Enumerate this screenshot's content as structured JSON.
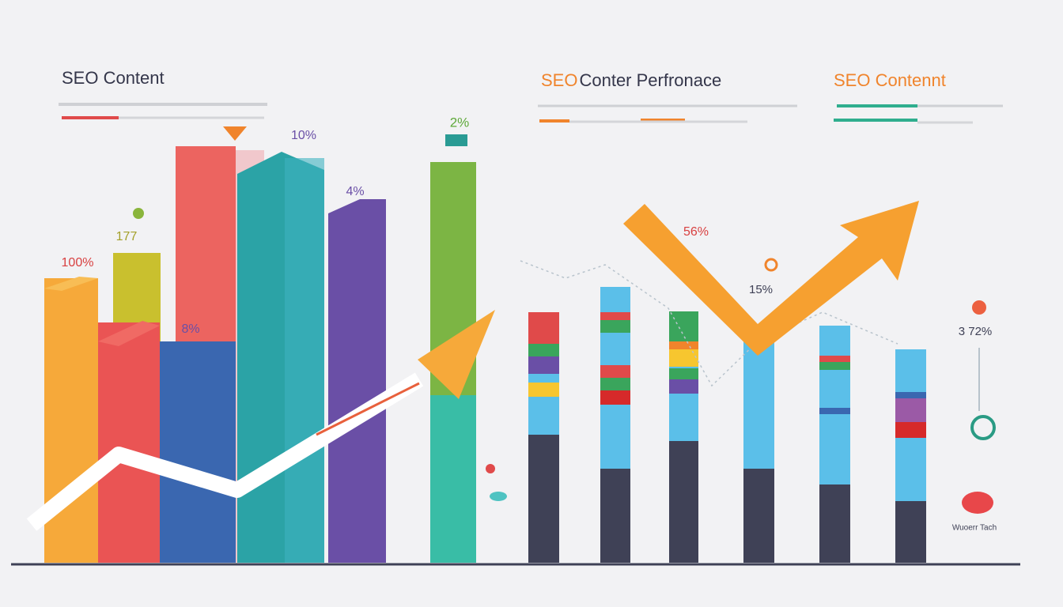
{
  "header": {
    "left_title": "SEO Content",
    "center_title_accent": "SEO",
    "center_title_rest": "Conter Perfronace",
    "right_title": "SEO Contennt"
  },
  "labels": {
    "orange_bar": "100%",
    "olive_bar": "177",
    "teal_bar": "10%",
    "purple_bar": "4%",
    "blue_bar": "8%",
    "green_bar": "2%",
    "arrow": "56%",
    "pin": "15%",
    "gauge": "3 72%",
    "footer_note": "Wuoerr Tach"
  }
}
